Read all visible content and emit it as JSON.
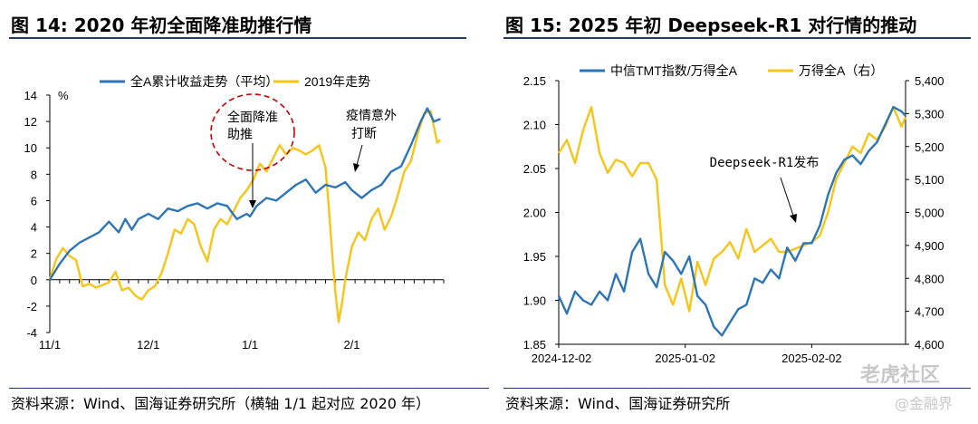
{
  "left": {
    "title": "图 14:  2020 年初全面降准助推行情",
    "source": "资料来源：Wind、国海证券研究所（横轴 1/1 起对应 2020 年）",
    "annotation1": [
      "全面降准",
      "助推"
    ],
    "annotation2": [
      "疫情意外",
      "打断"
    ]
  },
  "right": {
    "title": "图 15:  2025 年初 Deepseek-R1 对行情的推动",
    "source": "资料来源：Wind、国海证券研究所",
    "annotation": "Deepseek-R1发布"
  },
  "watermark": {
    "text1": "老虎社区",
    "text2": "@金融界"
  },
  "colors": {
    "blue": "#2e75b6",
    "yellow": "#f5c518",
    "red": "#c00000",
    "navy": "#1f3a63"
  },
  "chart_data": [
    {
      "type": "line",
      "unit_label": "%",
      "x_tick_labels": [
        "11/1",
        "12/1",
        "1/1",
        "2/1"
      ],
      "x_ticks_at": [
        0,
        30,
        61,
        92
      ],
      "xlim": [
        0,
        120
      ],
      "ylim": [
        -4,
        14
      ],
      "y_ticks": [
        -4,
        -2,
        0,
        2,
        4,
        6,
        8,
        10,
        12,
        14
      ],
      "series": [
        {
          "name": "全A累计收益走势（平均）",
          "color": "#2e75b6",
          "x": [
            0,
            3,
            6,
            9,
            12,
            15,
            18,
            21,
            23,
            25,
            27,
            30,
            33,
            36,
            39,
            42,
            45,
            48,
            51,
            54,
            57,
            60,
            61,
            63,
            66,
            69,
            72,
            75,
            78,
            81,
            84,
            87,
            90,
            92,
            95,
            98,
            101,
            104,
            107,
            110,
            113,
            115,
            117,
            119
          ],
          "values": [
            0,
            1.2,
            2.2,
            2.8,
            3.2,
            3.6,
            4.4,
            3.6,
            4.6,
            3.8,
            4.6,
            5.0,
            4.6,
            5.4,
            5.2,
            5.6,
            5.8,
            5.4,
            5.8,
            5.6,
            4.6,
            5.0,
            4.8,
            5.6,
            6.2,
            6.0,
            6.6,
            7.2,
            7.6,
            6.6,
            7.2,
            7.0,
            7.4,
            6.8,
            6.2,
            6.8,
            7.2,
            8.2,
            8.6,
            10.2,
            12.0,
            13.0,
            12.0,
            12.2
          ]
        },
        {
          "name": "2019年走势",
          "color": "#f5c518",
          "x": [
            0,
            2,
            4,
            6,
            8,
            10,
            12,
            14,
            16,
            18,
            20,
            22,
            24,
            26,
            28,
            30,
            32,
            34,
            36,
            38,
            40,
            42,
            44,
            46,
            48,
            50,
            52,
            54,
            56,
            58,
            60,
            62,
            64,
            66,
            68,
            70,
            72,
            74,
            76,
            78,
            80,
            82,
            84,
            85,
            86,
            87,
            88,
            89,
            90,
            92,
            94,
            96,
            98,
            100,
            102,
            104,
            106,
            108,
            110,
            112,
            114,
            116,
            118,
            119
          ],
          "values": [
            0,
            1.6,
            2.4,
            1.8,
            1.5,
            -0.5,
            -0.3,
            -0.6,
            -0.4,
            -0.2,
            0.6,
            -0.8,
            -0.6,
            -1.2,
            -1.5,
            -0.8,
            -0.5,
            0.5,
            2.0,
            3.8,
            3.5,
            4.6,
            4.2,
            2.5,
            1.4,
            3.8,
            4.6,
            4.2,
            5.2,
            6.2,
            6.8,
            7.6,
            8.8,
            8.2,
            9.2,
            10.2,
            9.5,
            10.0,
            9.8,
            9.5,
            9.8,
            10.2,
            8.5,
            5.5,
            2.0,
            -1.0,
            -3.2,
            -1.8,
            0.0,
            2.5,
            3.6,
            3.0,
            4.6,
            5.4,
            3.8,
            4.8,
            6.4,
            8.2,
            9.0,
            11.0,
            12.6,
            12.8,
            10.4,
            10.6
          ]
        }
      ]
    },
    {
      "type": "line",
      "x_tick_labels": [
        "2024-12-02",
        "2025-01-02",
        "2025-02-02"
      ],
      "x_ticks_at": [
        0,
        31,
        62
      ],
      "xlim": [
        0,
        85
      ],
      "y_left_lim": [
        1.85,
        2.15
      ],
      "y_left_ticks": [
        1.85,
        1.9,
        1.95,
        2.0,
        2.05,
        2.1,
        2.15
      ],
      "y_right_lim": [
        4600,
        5400
      ],
      "y_right_ticks": [
        4600,
        4700,
        4800,
        4900,
        5000,
        5100,
        5200,
        5300,
        5400
      ],
      "y_right_tick_labels": [
        "4,600",
        "4,700",
        "4,800",
        "4,900",
        "5,000",
        "5,100",
        "5,200",
        "5,300",
        "5,400"
      ],
      "series": [
        {
          "name": "中信TMT指数/万得全A",
          "axis": "left",
          "color": "#2e75b6",
          "x": [
            0,
            2,
            4,
            6,
            8,
            10,
            12,
            14,
            16,
            18,
            20,
            22,
            24,
            26,
            28,
            30,
            32,
            34,
            36,
            38,
            40,
            42,
            44,
            46,
            48,
            50,
            52,
            54,
            56,
            58,
            60,
            62,
            64,
            66,
            68,
            70,
            72,
            74,
            76,
            78,
            80,
            82,
            84,
            85
          ],
          "values": [
            1.905,
            1.885,
            1.91,
            1.9,
            1.895,
            1.91,
            1.9,
            1.93,
            1.91,
            1.955,
            1.97,
            1.93,
            1.915,
            1.955,
            1.945,
            1.93,
            1.95,
            1.905,
            1.895,
            1.87,
            1.86,
            1.875,
            1.89,
            1.895,
            1.925,
            1.92,
            1.935,
            1.925,
            1.96,
            1.945,
            1.965,
            1.965,
            1.985,
            2.02,
            2.045,
            2.06,
            2.065,
            2.055,
            2.07,
            2.08,
            2.1,
            2.12,
            2.115,
            2.11
          ]
        },
        {
          "name": "万得全A（右）",
          "axis": "right",
          "color": "#f5c518",
          "x": [
            0,
            2,
            4,
            6,
            8,
            10,
            12,
            14,
            16,
            18,
            20,
            22,
            24,
            26,
            28,
            30,
            32,
            34,
            36,
            38,
            40,
            42,
            44,
            46,
            48,
            50,
            52,
            54,
            56,
            58,
            60,
            62,
            64,
            66,
            68,
            70,
            72,
            74,
            76,
            78,
            80,
            82,
            84,
            85
          ],
          "values": [
            5180,
            5220,
            5150,
            5250,
            5320,
            5180,
            5120,
            5160,
            5150,
            5110,
            5150,
            5150,
            5100,
            4780,
            4720,
            4800,
            4700,
            4850,
            4780,
            4860,
            4880,
            4910,
            4860,
            4950,
            4880,
            4900,
            4920,
            4880,
            4880,
            4890,
            4900,
            4910,
            4930,
            5000,
            5100,
            5150,
            5200,
            5180,
            5240,
            5220,
            5260,
            5320,
            5260,
            5290
          ]
        }
      ]
    }
  ]
}
